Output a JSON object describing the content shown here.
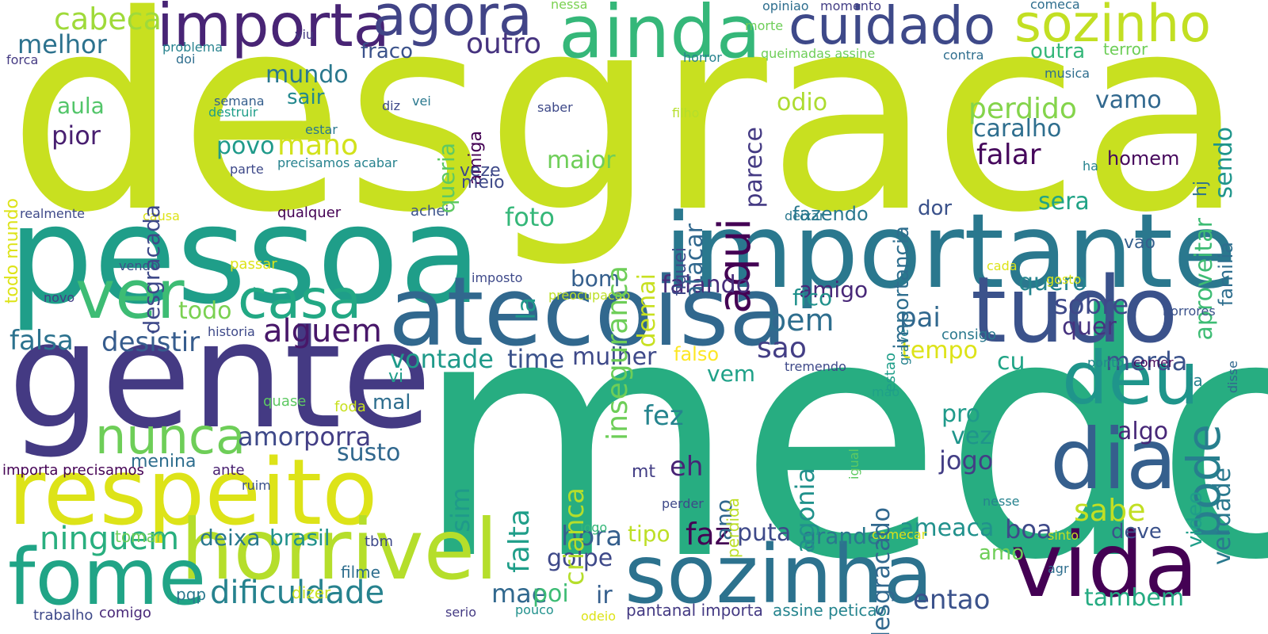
{
  "words": [
    {
      "text": "desgraca",
      "color": "#c8e020"
    },
    {
      "text": "medo",
      "color": "#27ad81"
    },
    {
      "text": "pessoa",
      "color": "#1f9e89"
    },
    {
      "text": "gente",
      "color": "#443a83"
    },
    {
      "text": "importante",
      "color": "#2a788e"
    },
    {
      "text": "atecoisa",
      "color": "#31688e"
    },
    {
      "text": "tudo",
      "color": "#3b528b"
    },
    {
      "text": "ainda",
      "color": "#35b779"
    },
    {
      "text": "respeito",
      "color": "#dde318"
    },
    {
      "text": "horrivel",
      "color": "#b5de2b"
    },
    {
      "text": "sozinha",
      "color": "#2c728e"
    },
    {
      "text": "vida",
      "color": "#440154"
    },
    {
      "text": "fome",
      "color": "#20a486"
    },
    {
      "text": "dia",
      "color": "#355f8d"
    },
    {
      "text": "deu",
      "color": "#1f958b"
    },
    {
      "text": "ver",
      "color": "#3dbc74"
    },
    {
      "text": "importa",
      "color": "#482475"
    },
    {
      "text": "agora",
      "color": "#414487"
    },
    {
      "text": "cuidado",
      "color": "#3e4989"
    },
    {
      "text": "sozinho",
      "color": "#c2df23"
    },
    {
      "text": "casa",
      "color": "#22a884"
    },
    {
      "text": "nunca",
      "color": "#6ece58"
    },
    {
      "text": "aqui",
      "color": "#440154"
    },
    {
      "text": "pode",
      "color": "#277f8e"
    },
    {
      "text": "ninguem",
      "color": "#29af7f"
    },
    {
      "text": "dificuldade",
      "color": "#26828e"
    },
    {
      "text": "cabeca",
      "color": "#9fda3a"
    },
    {
      "text": "melhor",
      "color": "#2c728e"
    },
    {
      "text": "mundo",
      "color": "#2a788e"
    },
    {
      "text": "fraco",
      "color": "#3b528b"
    },
    {
      "text": "outro",
      "color": "#46337f"
    },
    {
      "text": "sair",
      "color": "#23888e"
    },
    {
      "text": "aula",
      "color": "#52c569"
    },
    {
      "text": "pior",
      "color": "#481f70"
    },
    {
      "text": "povo",
      "color": "#1f9a8a"
    },
    {
      "text": "mano",
      "color": "#d2e21b"
    },
    {
      "text": "maior",
      "color": "#6ece58"
    },
    {
      "text": "foto",
      "color": "#35b779"
    },
    {
      "text": "perdido",
      "color": "#84d44b"
    },
    {
      "text": "caralho",
      "color": "#2e6e8e"
    },
    {
      "text": "falar",
      "color": "#46085c"
    },
    {
      "text": "vamo",
      "color": "#31688e"
    },
    {
      "text": "odio",
      "color": "#addc30"
    },
    {
      "text": "sera",
      "color": "#20a386"
    },
    {
      "text": "dor",
      "color": "#3b528b"
    },
    {
      "text": "fazendo",
      "color": "#2a788e"
    },
    {
      "text": "bom",
      "color": "#355f8d"
    },
    {
      "text": "falando",
      "color": "#472d7b"
    },
    {
      "text": "amigo",
      "color": "#482878"
    },
    {
      "text": "fico",
      "color": "#21918c"
    },
    {
      "text": "pai",
      "color": "#31688e"
    },
    {
      "text": "bem",
      "color": "#2e6e8e"
    },
    {
      "text": "sao",
      "color": "#433e85"
    },
    {
      "text": "quero",
      "color": "#25848e"
    },
    {
      "text": "sobre",
      "color": "#3e4989"
    },
    {
      "text": "quer",
      "color": "#46337f"
    },
    {
      "text": "tempo",
      "color": "#dde318"
    },
    {
      "text": "merda",
      "color": "#3b528b"
    },
    {
      "text": "cu",
      "color": "#20a486"
    },
    {
      "text": "alguem",
      "color": "#481769"
    },
    {
      "text": "todo",
      "color": "#7ad151"
    },
    {
      "text": "falsa",
      "color": "#2c728e"
    },
    {
      "text": "desistir",
      "color": "#365c8d"
    },
    {
      "text": "vontade",
      "color": "#1f9a8a"
    },
    {
      "text": "time",
      "color": "#3b528b"
    },
    {
      "text": "mulher",
      "color": "#3e4989"
    },
    {
      "text": "falso",
      "color": "#fde725"
    },
    {
      "text": "vem",
      "color": "#1fa188"
    },
    {
      "text": "fez",
      "color": "#25848e"
    },
    {
      "text": "eh",
      "color": "#482475"
    },
    {
      "text": "amor",
      "color": "#3e4989"
    },
    {
      "text": "porra",
      "color": "#433e85"
    },
    {
      "text": "susto",
      "color": "#31688e"
    },
    {
      "text": "sim",
      "color": "#1f9a8a"
    },
    {
      "text": "mal",
      "color": "#2e6e8e"
    },
    {
      "text": "vi",
      "color": "#1f9e89"
    },
    {
      "text": "menina",
      "color": "#2e6e8e"
    },
    {
      "text": "pro",
      "color": "#1f9a8a"
    },
    {
      "text": "vez",
      "color": "#1f958b"
    },
    {
      "text": "algo",
      "color": "#482878"
    },
    {
      "text": "jogo",
      "color": "#433e85"
    },
    {
      "text": "sabe",
      "color": "#c2df23"
    },
    {
      "text": "ameaca",
      "color": "#21918c"
    },
    {
      "text": "boa",
      "color": "#3e4989"
    },
    {
      "text": "deve",
      "color": "#3b528b"
    },
    {
      "text": "hora",
      "color": "#355f8d"
    },
    {
      "text": "faz",
      "color": "#440154"
    },
    {
      "text": "puta",
      "color": "#3e4989"
    },
    {
      "text": "grande",
      "color": "#2a788e"
    },
    {
      "text": "tipo",
      "color": "#bddf26"
    },
    {
      "text": "golpe",
      "color": "#3e4989"
    },
    {
      "text": "mae",
      "color": "#31688e"
    },
    {
      "text": "poi",
      "color": "#3dbc74"
    },
    {
      "text": "ir",
      "color": "#355f8d"
    },
    {
      "text": "entao",
      "color": "#3b528b"
    },
    {
      "text": "tambem",
      "color": "#25ab82"
    },
    {
      "text": "deixa",
      "color": "#2a788e"
    },
    {
      "text": "brasil",
      "color": "#21918c"
    },
    {
      "text": "amo",
      "color": "#6ece58"
    },
    {
      "text": "video",
      "color": "#1f9e89"
    },
    {
      "text": "verdade",
      "color": "#2a788e"
    },
    {
      "text": "familia",
      "color": "#2e6e8e"
    },
    {
      "text": "aproveitar",
      "color": "#3dbc74"
    },
    {
      "text": "sendo",
      "color": "#1f958b"
    },
    {
      "text": "hj",
      "color": "#2c728e"
    },
    {
      "text": "homem",
      "color": "#46085c"
    },
    {
      "text": "vao",
      "color": "#355f8d"
    },
    {
      "text": "ia",
      "color": "#26828e"
    },
    {
      "text": "disse",
      "color": "#31688e"
    },
    {
      "text": "horrores",
      "color": "#3b528b"
    },
    {
      "text": "comer",
      "color": "#46085c"
    },
    {
      "text": "ponto",
      "color": "#23888e"
    },
    {
      "text": "tremendo",
      "color": "#3e4989"
    },
    {
      "text": "grave",
      "color": "#26828e"
    },
    {
      "text": "consigo",
      "color": "#2a788e"
    },
    {
      "text": "mao",
      "color": "#1fa188"
    },
    {
      "text": "igual",
      "color": "#5ec962"
    },
    {
      "text": "nesse",
      "color": "#26828e"
    },
    {
      "text": "sinto",
      "color": "#c2df23"
    },
    {
      "text": "agr",
      "color": "#2e6e8e"
    },
    {
      "text": "comecar",
      "color": "#dde318"
    },
    {
      "text": "logo",
      "color": "#35b779"
    },
    {
      "text": "perder",
      "color": "#3e4989"
    },
    {
      "text": "mt",
      "color": "#433e85"
    },
    {
      "text": "odeio",
      "color": "#dde318"
    },
    {
      "text": "pouco",
      "color": "#21918c"
    },
    {
      "text": "serio",
      "color": "#443a83"
    },
    {
      "text": "pantanal importa",
      "color": "#443a83"
    },
    {
      "text": "assine peticao",
      "color": "#25848e"
    },
    {
      "text": "dizer",
      "color": "#c8e020"
    },
    {
      "text": "filme",
      "color": "#2e6e8e"
    },
    {
      "text": "comigo",
      "color": "#482878"
    },
    {
      "text": "trabalho",
      "color": "#3e4989"
    },
    {
      "text": "pqp",
      "color": "#2a788e"
    },
    {
      "text": "tbm",
      "color": "#3e4989"
    },
    {
      "text": "tomar",
      "color": "#6ece58"
    },
    {
      "text": "ruim",
      "color": "#3b528b"
    },
    {
      "text": "ante",
      "color": "#481f70"
    },
    {
      "text": "importa precisamos",
      "color": "#440154"
    },
    {
      "text": "foda",
      "color": "#c8e020"
    },
    {
      "text": "quase",
      "color": "#5ec962"
    },
    {
      "text": "historia",
      "color": "#3e4989"
    },
    {
      "text": "novo",
      "color": "#433e85"
    },
    {
      "text": "vendo",
      "color": "#3b528b"
    },
    {
      "text": "passar",
      "color": "#dde318"
    },
    {
      "text": "causa",
      "color": "#dde318"
    },
    {
      "text": "realmente",
      "color": "#3e4989"
    },
    {
      "text": "qualquer",
      "color": "#440154"
    },
    {
      "text": "achei",
      "color": "#3b528b"
    },
    {
      "text": "imposto",
      "color": "#3e4989"
    },
    {
      "text": "preocupacao",
      "color": "#bddf26"
    },
    {
      "text": "deixar",
      "color": "#2a788e"
    },
    {
      "text": "cada",
      "color": "#dde318"
    },
    {
      "text": "gosto",
      "color": "#dde318"
    },
    {
      "text": "estao",
      "color": "#1f9e89"
    },
    {
      "text": "todo mundo",
      "color": "#dde318"
    },
    {
      "text": "desgracada",
      "color": "#3e4989"
    },
    {
      "text": "queria",
      "color": "#5ec962"
    },
    {
      "text": "amiga",
      "color": "#440154"
    },
    {
      "text": "veze",
      "color": "#3e4989"
    },
    {
      "text": "meio",
      "color": "#3e4989"
    },
    {
      "text": "inseguranca",
      "color": "#6ece58"
    },
    {
      "text": "la",
      "color": "#1f9a8a"
    },
    {
      "text": "demai",
      "color": "#c8e020"
    },
    {
      "text": "fiquei",
      "color": "#3e4989"
    },
    {
      "text": "atacar",
      "color": "#31688e"
    },
    {
      "text": "parece",
      "color": "#443a83"
    },
    {
      "text": "importancia",
      "color": "#2e6e8e"
    },
    {
      "text": "desgracado",
      "color": "#31688e"
    },
    {
      "text": "agonia",
      "color": "#21918c"
    },
    {
      "text": "crianca",
      "color": "#b5de2b"
    },
    {
      "text": "falta",
      "color": "#1f9e89"
    },
    {
      "text": "ano",
      "color": "#31688e"
    },
    {
      "text": "perdida",
      "color": "#bddf26"
    },
    {
      "text": "semana",
      "color": "#355f8d"
    },
    {
      "text": "destruir",
      "color": "#1f9e89"
    },
    {
      "text": "estar",
      "color": "#2a788e"
    },
    {
      "text": "parte",
      "color": "#3e4989"
    },
    {
      "text": "precisamos acabar",
      "color": "#26828e"
    },
    {
      "text": "diz",
      "color": "#3e4989"
    },
    {
      "text": "vei",
      "color": "#2a788e"
    },
    {
      "text": "saber",
      "color": "#3e4989"
    },
    {
      "text": "filho",
      "color": "#b5de2b"
    },
    {
      "text": "horror",
      "color": "#26828e"
    },
    {
      "text": "morte",
      "color": "#6ece58"
    },
    {
      "text": "queimadas assine",
      "color": "#6ece58"
    },
    {
      "text": "contra",
      "color": "#2e6e8e"
    },
    {
      "text": "outra",
      "color": "#35b779"
    },
    {
      "text": "terror",
      "color": "#6ece58"
    },
    {
      "text": "musica",
      "color": "#2e6e8e"
    },
    {
      "text": "ha",
      "color": "#26828e"
    },
    {
      "text": "opiniao",
      "color": "#2e6e8e"
    },
    {
      "text": "momento",
      "color": "#433e85"
    },
    {
      "text": "comeca",
      "color": "#2e6e8e"
    },
    {
      "text": "nessa",
      "color": "#7ad151"
    },
    {
      "text": "viu",
      "color": "#443a83"
    },
    {
      "text": "problema",
      "color": "#26828e"
    },
    {
      "text": "doi",
      "color": "#2e6e8e"
    },
    {
      "text": "forca",
      "color": "#443a83"
    }
  ]
}
